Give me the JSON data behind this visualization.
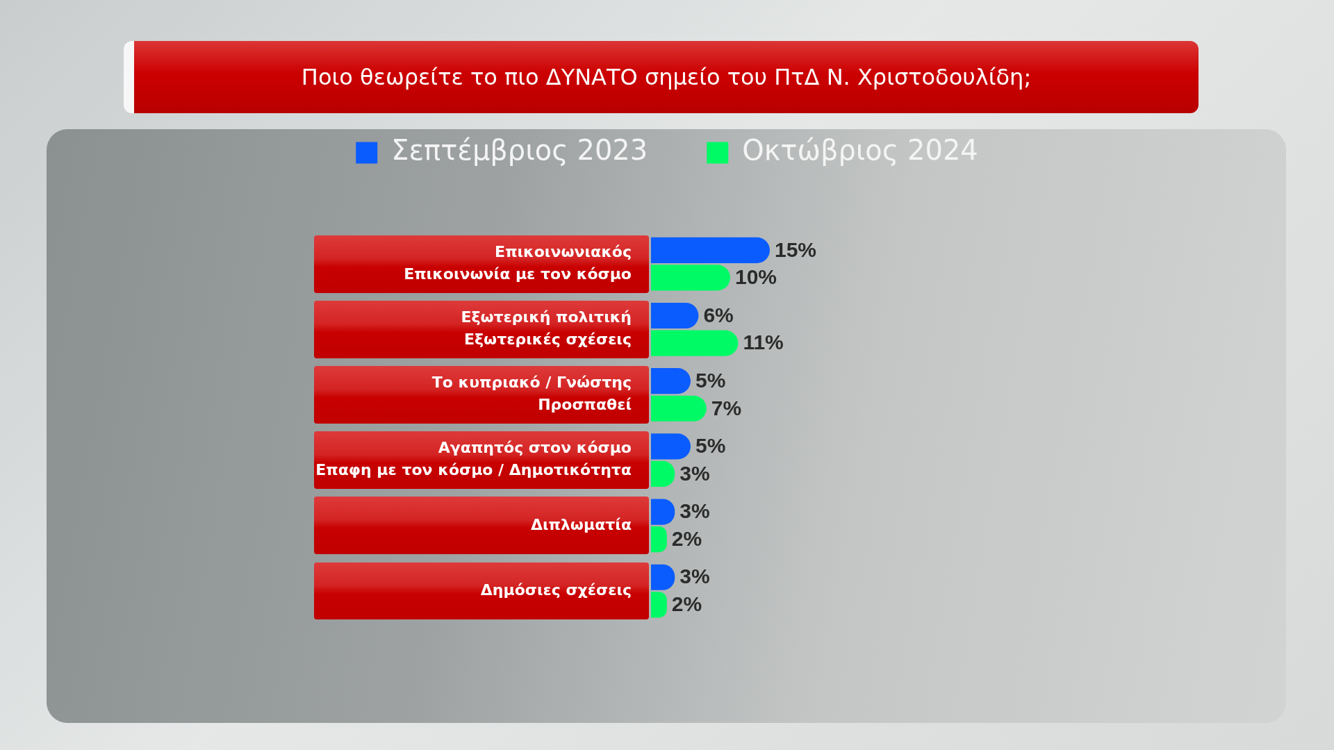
{
  "chart_data": {
    "type": "bar",
    "orientation": "horizontal",
    "title": "Ποιο θεωρείτε το πιο ΔΥΝΑΤΟ σημείο του ΠτΔ Ν. Χριστοδουλίδη;",
    "categories": [
      "Επικοινωνιακός\nΕπικοινωνία με τον κόσμο",
      "Εξωτερική πολιτική\nΕξωτερικές σχέσεις",
      "Το κυπριακό / Γνώστης\nΠροσπαθεί",
      "Αγαπητός στον κόσμο\nΕπαφη με τον κόσμο / Δημοτικότητα",
      "Διπλωματία",
      "Δημόσιες σχέσεις"
    ],
    "series": [
      {
        "name": "Σεπτέμβριος 2023",
        "color": "#0a5cff",
        "values": [
          15,
          6,
          5,
          5,
          3,
          3
        ],
        "value_labels": [
          "15%",
          "6%",
          "5%",
          "5%",
          "3%",
          "3%"
        ]
      },
      {
        "name": "Οκτώβριος 2024",
        "color": "#00fa66",
        "values": [
          10,
          11,
          7,
          3,
          2,
          2
        ],
        "value_labels": [
          "10%",
          "11%",
          "7%",
          "3%",
          "2%",
          "2%"
        ]
      }
    ],
    "legend": "top",
    "grid": false,
    "tick_labels": "y"
  }
}
